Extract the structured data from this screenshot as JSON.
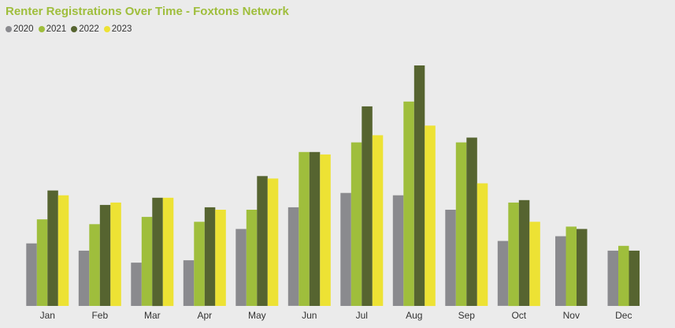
{
  "chart_data": {
    "type": "bar",
    "title": "Renter Registrations Over Time - Foxtons Network",
    "xlabel": "",
    "ylabel": "",
    "legend_position": "top-left",
    "grid": false,
    "categories": [
      "Jan",
      "Feb",
      "Mar",
      "Apr",
      "May",
      "Jun",
      "Jul",
      "Aug",
      "Sep",
      "Oct",
      "Nov",
      "Dec"
    ],
    "ylim": [
      0,
      100
    ],
    "series": [
      {
        "name": "2020",
        "color": "#8a8a8e",
        "values": [
          26,
          23,
          18,
          19,
          32,
          41,
          47,
          46,
          40,
          27,
          29,
          23
        ]
      },
      {
        "name": "2021",
        "color": "#9fbe3c",
        "values": [
          36,
          34,
          37,
          35,
          40,
          64,
          68,
          85,
          68,
          43,
          33,
          25
        ]
      },
      {
        "name": "2022",
        "color": "#566430",
        "values": [
          48,
          42,
          45,
          41,
          54,
          64,
          83,
          100,
          70,
          44,
          32,
          23
        ]
      },
      {
        "name": "2023",
        "color": "#ede234",
        "values": [
          46,
          43,
          45,
          40,
          53,
          63,
          71,
          75,
          51,
          35,
          null,
          null
        ]
      }
    ]
  }
}
